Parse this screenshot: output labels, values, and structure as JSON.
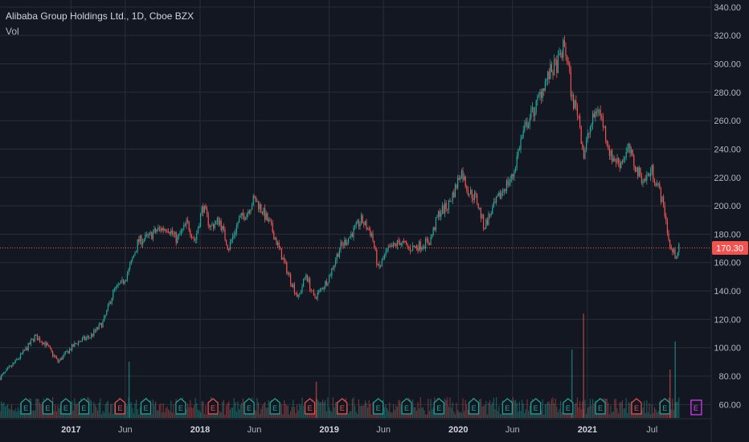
{
  "legend": {
    "title": "Alibaba Group Holdings Ltd., 1D, Cboe BZX",
    "volume_label": "Vol"
  },
  "last_price": {
    "label": "170.30",
    "value": 170.3,
    "color": "#f05350"
  },
  "colors": {
    "background": "#131722",
    "grid": "#2a2e39",
    "up": "#26a69a",
    "down": "#ef5350",
    "earnings_up": "#26a69a",
    "earnings_down": "#ef5350",
    "earnings_upcoming": "#e040fb"
  },
  "earnings_marker_label": "E",
  "earnings_icon": "earnings-flag-icon",
  "chart_data": {
    "type": "candlestick",
    "symbol": "Alibaba Group Holdings Ltd.",
    "interval": "1D",
    "exchange": "Cboe BZX",
    "ylim": [
      50,
      345
    ],
    "y_ticks": [
      60,
      80,
      100,
      120,
      140,
      160,
      180,
      200,
      220,
      240,
      260,
      280,
      300,
      320,
      340
    ],
    "x_ticks": [
      {
        "label": "2017",
        "t": 2017.0,
        "major": true
      },
      {
        "label": "Jun",
        "t": 2017.42,
        "major": false
      },
      {
        "label": "2018",
        "t": 2018.0,
        "major": true
      },
      {
        "label": "Jun",
        "t": 2018.42,
        "major": false
      },
      {
        "label": "2019",
        "t": 2019.0,
        "major": true
      },
      {
        "label": "Jun",
        "t": 2019.42,
        "major": false
      },
      {
        "label": "2020",
        "t": 2020.0,
        "major": true
      },
      {
        "label": "Jun",
        "t": 2020.42,
        "major": false
      },
      {
        "label": "2021",
        "t": 2021.0,
        "major": true
      },
      {
        "label": "Jul",
        "t": 2021.5,
        "major": false
      }
    ],
    "x_range": [
      2016.45,
      2021.71
    ],
    "price_path": [
      [
        2016.45,
        79
      ],
      [
        2016.55,
        88
      ],
      [
        2016.66,
        100
      ],
      [
        2016.72,
        108
      ],
      [
        2016.8,
        103
      ],
      [
        2016.9,
        90
      ],
      [
        2016.96,
        96
      ],
      [
        2017.05,
        104
      ],
      [
        2017.15,
        108
      ],
      [
        2017.25,
        118
      ],
      [
        2017.33,
        140
      ],
      [
        2017.4,
        146
      ],
      [
        2017.45,
        155
      ],
      [
        2017.52,
        175
      ],
      [
        2017.6,
        178
      ],
      [
        2017.67,
        183
      ],
      [
        2017.75,
        185
      ],
      [
        2017.82,
        176
      ],
      [
        2017.9,
        188
      ],
      [
        2017.96,
        175
      ],
      [
        2018.02,
        200
      ],
      [
        2018.08,
        185
      ],
      [
        2018.15,
        190
      ],
      [
        2018.22,
        170
      ],
      [
        2018.3,
        190
      ],
      [
        2018.36,
        195
      ],
      [
        2018.42,
        205
      ],
      [
        2018.46,
        200
      ],
      [
        2018.55,
        185
      ],
      [
        2018.63,
        165
      ],
      [
        2018.7,
        148
      ],
      [
        2018.76,
        135
      ],
      [
        2018.82,
        152
      ],
      [
        2018.88,
        135
      ],
      [
        2018.93,
        140
      ],
      [
        2019.0,
        150
      ],
      [
        2019.08,
        170
      ],
      [
        2019.17,
        180
      ],
      [
        2019.25,
        190
      ],
      [
        2019.33,
        180
      ],
      [
        2019.38,
        155
      ],
      [
        2019.45,
        168
      ],
      [
        2019.55,
        175
      ],
      [
        2019.62,
        170
      ],
      [
        2019.7,
        172
      ],
      [
        2019.78,
        175
      ],
      [
        2019.85,
        195
      ],
      [
        2019.92,
        200
      ],
      [
        2019.98,
        213
      ],
      [
        2020.02,
        225
      ],
      [
        2020.08,
        210
      ],
      [
        2020.14,
        205
      ],
      [
        2020.2,
        185
      ],
      [
        2020.25,
        195
      ],
      [
        2020.31,
        205
      ],
      [
        2020.37,
        215
      ],
      [
        2020.42,
        220
      ],
      [
        2020.48,
        245
      ],
      [
        2020.54,
        260
      ],
      [
        2020.6,
        270
      ],
      [
        2020.66,
        285
      ],
      [
        2020.72,
        295
      ],
      [
        2020.77,
        300
      ],
      [
        2020.82,
        313
      ],
      [
        2020.85,
        300
      ],
      [
        2020.88,
        275
      ],
      [
        2020.93,
        265
      ],
      [
        2020.97,
        235
      ],
      [
        2021.02,
        255
      ],
      [
        2021.08,
        270
      ],
      [
        2021.12,
        258
      ],
      [
        2021.18,
        235
      ],
      [
        2021.25,
        230
      ],
      [
        2021.32,
        240
      ],
      [
        2021.38,
        225
      ],
      [
        2021.44,
        218
      ],
      [
        2021.5,
        225
      ],
      [
        2021.56,
        210
      ],
      [
        2021.6,
        195
      ],
      [
        2021.64,
        170
      ],
      [
        2021.68,
        165
      ],
      [
        2021.71,
        170.3
      ]
    ],
    "volume_bottom": 520,
    "volume_spikes": [
      {
        "t": 2017.45,
        "height": 70,
        "color": "up"
      },
      {
        "t": 2018.9,
        "height": 45,
        "color": "down"
      },
      {
        "t": 2020.88,
        "height": 85,
        "color": "up"
      },
      {
        "t": 2020.97,
        "height": 130,
        "color": "down"
      },
      {
        "t": 2021.68,
        "height": 95,
        "color": "up"
      },
      {
        "t": 2021.64,
        "height": 60,
        "color": "down"
      }
    ],
    "earnings": [
      {
        "t": 2016.65,
        "color": "earnings_up"
      },
      {
        "t": 2016.82,
        "color": "earnings_up"
      },
      {
        "t": 2016.96,
        "color": "earnings_up"
      },
      {
        "t": 2017.1,
        "color": "earnings_up"
      },
      {
        "t": 2017.38,
        "color": "earnings_down"
      },
      {
        "t": 2017.58,
        "color": "earnings_up"
      },
      {
        "t": 2017.85,
        "color": "earnings_up"
      },
      {
        "t": 2018.1,
        "color": "earnings_down"
      },
      {
        "t": 2018.38,
        "color": "earnings_up"
      },
      {
        "t": 2018.58,
        "color": "earnings_up"
      },
      {
        "t": 2018.85,
        "color": "earnings_down"
      },
      {
        "t": 2019.1,
        "color": "earnings_down"
      },
      {
        "t": 2019.38,
        "color": "earnings_up"
      },
      {
        "t": 2019.6,
        "color": "earnings_up"
      },
      {
        "t": 2019.85,
        "color": "earnings_up"
      },
      {
        "t": 2020.12,
        "color": "earnings_up"
      },
      {
        "t": 2020.38,
        "color": "earnings_up"
      },
      {
        "t": 2020.6,
        "color": "earnings_up"
      },
      {
        "t": 2020.85,
        "color": "earnings_up"
      },
      {
        "t": 2021.1,
        "color": "earnings_up"
      },
      {
        "t": 2021.38,
        "color": "earnings_down"
      },
      {
        "t": 2021.6,
        "color": "earnings_up"
      },
      {
        "t": 2021.84,
        "color": "earnings_upcoming"
      }
    ]
  }
}
